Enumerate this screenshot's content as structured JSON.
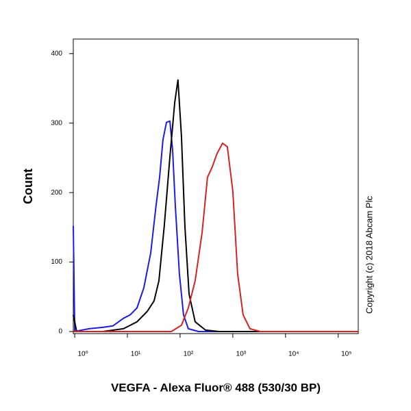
{
  "chart_data": {
    "type": "line",
    "xlabel": "VEGFA - Alexa Fluor® 488 (530/30 BP)",
    "ylabel": "Count",
    "annotation": "Copyright (c) 2018 Abcam Plc",
    "xscale": "log",
    "xlim": [
      0.94,
      240000
    ],
    "ylim": [
      -3,
      421
    ],
    "xticks": [
      {
        "value": 1,
        "label": "10⁰"
      },
      {
        "value": 10,
        "label": "10¹"
      },
      {
        "value": 100,
        "label": "10²"
      },
      {
        "value": 1000,
        "label": "10³"
      },
      {
        "value": 10000,
        "label": "10⁴"
      },
      {
        "value": 100000,
        "label": "10⁵"
      }
    ],
    "yticks": [
      0,
      100,
      200,
      300,
      400
    ],
    "series": [
      {
        "color": "#1c1ce0",
        "x": [
          0.94,
          1.0,
          1.87,
          3.4,
          5.3,
          8.4,
          11.3,
          15.2,
          20.5,
          27.7,
          35,
          40.8,
          47.3,
          55,
          64,
          72,
          81,
          97,
          116,
          143,
          224,
          240000
        ],
        "values": [
          152,
          0,
          4,
          6,
          8,
          19,
          24,
          34,
          63,
          113,
          182,
          222,
          276,
          301,
          303,
          261,
          182,
          83,
          24,
          4,
          0,
          0
        ]
      },
      {
        "color": "#000000",
        "x": [
          0.94,
          1.09,
          3.4,
          8.4,
          15.2,
          23.8,
          32,
          39.6,
          50,
          64,
          79,
          91,
          106,
          123,
          148,
          193,
          303,
          550,
          240000
        ],
        "values": [
          24,
          0,
          0,
          4,
          14,
          29,
          44,
          73,
          152,
          251,
          330,
          362,
          281,
          152,
          54,
          14,
          2,
          0,
          0
        ]
      },
      {
        "color": "#d42222",
        "x": [
          0.94,
          68,
          106,
          143,
          193,
          261,
          331,
          408,
          502,
          638,
          787,
          1000,
          1233,
          1567,
          2113,
          3304,
          240000
        ],
        "values": [
          0,
          0,
          9,
          34,
          73,
          142,
          222,
          237,
          256,
          271,
          266,
          202,
          83,
          24,
          4,
          0,
          0
        ]
      }
    ]
  }
}
